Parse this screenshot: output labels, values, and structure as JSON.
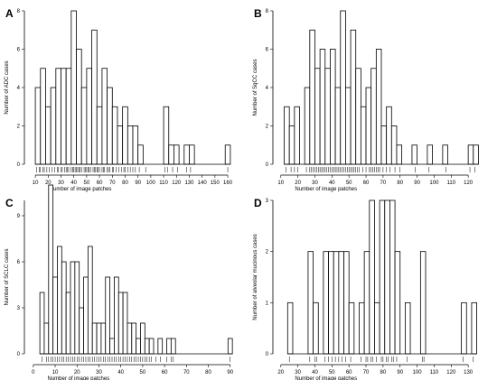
{
  "chart_data": [
    {
      "letter": "A",
      "type": "bar",
      "xlabel": "Number of image patches",
      "ylabel": "Number of ADC cases",
      "xlim": [
        5,
        167
      ],
      "ylim": [
        0,
        8
      ],
      "xticks": [
        10,
        20,
        30,
        40,
        50,
        60,
        70,
        80,
        90,
        100,
        110,
        120,
        130,
        140,
        150,
        160
      ],
      "yticks": [
        0,
        2,
        4,
        6,
        8
      ],
      "bins": [
        {
          "x0": 10,
          "x1": 14,
          "count": 4
        },
        {
          "x0": 14,
          "x1": 18,
          "count": 5
        },
        {
          "x0": 18,
          "x1": 22,
          "count": 3
        },
        {
          "x0": 22,
          "x1": 26,
          "count": 4
        },
        {
          "x0": 26,
          "x1": 30,
          "count": 5
        },
        {
          "x0": 30,
          "x1": 34,
          "count": 5
        },
        {
          "x0": 34,
          "x1": 38,
          "count": 5
        },
        {
          "x0": 38,
          "x1": 42,
          "count": 8
        },
        {
          "x0": 42,
          "x1": 46,
          "count": 6
        },
        {
          "x0": 46,
          "x1": 50,
          "count": 4
        },
        {
          "x0": 50,
          "x1": 54,
          "count": 5
        },
        {
          "x0": 54,
          "x1": 58,
          "count": 7
        },
        {
          "x0": 58,
          "x1": 62,
          "count": 3
        },
        {
          "x0": 62,
          "x1": 66,
          "count": 5
        },
        {
          "x0": 66,
          "x1": 70,
          "count": 4
        },
        {
          "x0": 70,
          "x1": 74,
          "count": 3
        },
        {
          "x0": 74,
          "x1": 78,
          "count": 2
        },
        {
          "x0": 78,
          "x1": 82,
          "count": 3
        },
        {
          "x0": 82,
          "x1": 86,
          "count": 2
        },
        {
          "x0": 86,
          "x1": 90,
          "count": 2
        },
        {
          "x0": 90,
          "x1": 94,
          "count": 1
        },
        {
          "x0": 94,
          "x1": 98,
          "count": 0
        },
        {
          "x0": 98,
          "x1": 102,
          "count": 0
        },
        {
          "x0": 102,
          "x1": 106,
          "count": 0
        },
        {
          "x0": 106,
          "x1": 110,
          "count": 0
        },
        {
          "x0": 110,
          "x1": 114,
          "count": 3
        },
        {
          "x0": 114,
          "x1": 118,
          "count": 1
        },
        {
          "x0": 118,
          "x1": 122,
          "count": 1
        },
        {
          "x0": 122,
          "x1": 126,
          "count": 0
        },
        {
          "x0": 126,
          "x1": 130,
          "count": 1
        },
        {
          "x0": 130,
          "x1": 134,
          "count": 1
        },
        {
          "x0": 134,
          "x1": 138,
          "count": 0
        },
        {
          "x0": 138,
          "x1": 142,
          "count": 0
        },
        {
          "x0": 142,
          "x1": 146,
          "count": 0
        },
        {
          "x0": 146,
          "x1": 150,
          "count": 0
        },
        {
          "x0": 150,
          "x1": 154,
          "count": 0
        },
        {
          "x0": 154,
          "x1": 158,
          "count": 0
        },
        {
          "x0": 158,
          "x1": 162,
          "count": 1
        }
      ],
      "rug": [
        11,
        13,
        14,
        16,
        17,
        19,
        21,
        23,
        25,
        27,
        28,
        30,
        31,
        33,
        34,
        35,
        36,
        38,
        39,
        40,
        41,
        42,
        43,
        44,
        45,
        46,
        48,
        49,
        50,
        51,
        52,
        53,
        55,
        56,
        57,
        58,
        59,
        60,
        62,
        63,
        64,
        66,
        67,
        68,
        70,
        71,
        73,
        75,
        77,
        79,
        80,
        82,
        84,
        86,
        88,
        91,
        96,
        111,
        113,
        117,
        121,
        128,
        131,
        160
      ]
    },
    {
      "letter": "B",
      "type": "bar",
      "xlabel": "Number of image patches",
      "ylabel": "Number of SqCC cases",
      "xlim": [
        8,
        130
      ],
      "ylim": [
        0,
        8
      ],
      "xticks": [
        10,
        20,
        30,
        40,
        50,
        60,
        70,
        80,
        90,
        100,
        110,
        120
      ],
      "yticks": [
        0,
        2,
        4,
        6,
        8
      ],
      "bins": [
        {
          "x0": 12,
          "x1": 15,
          "count": 3
        },
        {
          "x0": 15,
          "x1": 18,
          "count": 2
        },
        {
          "x0": 18,
          "x1": 21,
          "count": 3
        },
        {
          "x0": 21,
          "x1": 24,
          "count": 0
        },
        {
          "x0": 24,
          "x1": 27,
          "count": 4
        },
        {
          "x0": 27,
          "x1": 30,
          "count": 7
        },
        {
          "x0": 30,
          "x1": 33,
          "count": 5
        },
        {
          "x0": 33,
          "x1": 36,
          "count": 6
        },
        {
          "x0": 36,
          "x1": 39,
          "count": 5
        },
        {
          "x0": 39,
          "x1": 42,
          "count": 6
        },
        {
          "x0": 42,
          "x1": 45,
          "count": 4
        },
        {
          "x0": 45,
          "x1": 48,
          "count": 8
        },
        {
          "x0": 48,
          "x1": 51,
          "count": 4
        },
        {
          "x0": 51,
          "x1": 54,
          "count": 7
        },
        {
          "x0": 54,
          "x1": 57,
          "count": 5
        },
        {
          "x0": 57,
          "x1": 60,
          "count": 3
        },
        {
          "x0": 60,
          "x1": 63,
          "count": 4
        },
        {
          "x0": 63,
          "x1": 66,
          "count": 5
        },
        {
          "x0": 66,
          "x1": 69,
          "count": 6
        },
        {
          "x0": 69,
          "x1": 72,
          "count": 2
        },
        {
          "x0": 72,
          "x1": 75,
          "count": 3
        },
        {
          "x0": 75,
          "x1": 78,
          "count": 2
        },
        {
          "x0": 78,
          "x1": 81,
          "count": 1
        },
        {
          "x0": 81,
          "x1": 84,
          "count": 0
        },
        {
          "x0": 84,
          "x1": 87,
          "count": 0
        },
        {
          "x0": 87,
          "x1": 90,
          "count": 1
        },
        {
          "x0": 90,
          "x1": 93,
          "count": 0
        },
        {
          "x0": 93,
          "x1": 96,
          "count": 0
        },
        {
          "x0": 96,
          "x1": 99,
          "count": 1
        },
        {
          "x0": 99,
          "x1": 102,
          "count": 0
        },
        {
          "x0": 102,
          "x1": 105,
          "count": 0
        },
        {
          "x0": 105,
          "x1": 108,
          "count": 1
        },
        {
          "x0": 108,
          "x1": 111,
          "count": 0
        },
        {
          "x0": 111,
          "x1": 114,
          "count": 0
        },
        {
          "x0": 114,
          "x1": 117,
          "count": 0
        },
        {
          "x0": 117,
          "x1": 120,
          "count": 0
        },
        {
          "x0": 120,
          "x1": 123,
          "count": 1
        },
        {
          "x0": 123,
          "x1": 126,
          "count": 1
        }
      ],
      "rug": [
        13,
        16,
        18,
        20,
        25,
        27,
        28,
        29,
        30,
        31,
        32,
        33,
        34,
        35,
        36,
        37,
        38,
        39,
        40,
        41,
        42,
        43,
        44,
        45,
        46,
        47,
        48,
        49,
        50,
        51,
        52,
        53,
        54,
        55,
        56,
        58,
        60,
        62,
        63,
        64,
        65,
        66,
        67,
        68,
        70,
        72,
        74,
        77,
        80,
        89,
        97,
        107,
        121,
        124
      ]
    },
    {
      "letter": "C",
      "type": "bar",
      "xlabel": "Number of image patches",
      "ylabel": "Number of SCLC cases",
      "xlim": [
        -2,
        93
      ],
      "ylim": [
        0,
        10
      ],
      "xticks": [
        0,
        10,
        20,
        30,
        40,
        50,
        60,
        70,
        80,
        90
      ],
      "yticks": [
        0,
        3,
        6,
        9
      ],
      "bins": [
        {
          "x0": 3,
          "x1": 5,
          "count": 4
        },
        {
          "x0": 5,
          "x1": 7,
          "count": 2
        },
        {
          "x0": 7,
          "x1": 9,
          "count": 11
        },
        {
          "x0": 9,
          "x1": 11,
          "count": 5
        },
        {
          "x0": 11,
          "x1": 13,
          "count": 7
        },
        {
          "x0": 13,
          "x1": 15,
          "count": 6
        },
        {
          "x0": 15,
          "x1": 17,
          "count": 4
        },
        {
          "x0": 17,
          "x1": 19,
          "count": 6
        },
        {
          "x0": 19,
          "x1": 21,
          "count": 6
        },
        {
          "x0": 21,
          "x1": 23,
          "count": 3
        },
        {
          "x0": 23,
          "x1": 25,
          "count": 5
        },
        {
          "x0": 25,
          "x1": 27,
          "count": 7
        },
        {
          "x0": 27,
          "x1": 29,
          "count": 2
        },
        {
          "x0": 29,
          "x1": 31,
          "count": 2
        },
        {
          "x0": 31,
          "x1": 33,
          "count": 2
        },
        {
          "x0": 33,
          "x1": 35,
          "count": 5
        },
        {
          "x0": 35,
          "x1": 37,
          "count": 1
        },
        {
          "x0": 37,
          "x1": 39,
          "count": 5
        },
        {
          "x0": 39,
          "x1": 41,
          "count": 4
        },
        {
          "x0": 41,
          "x1": 43,
          "count": 4
        },
        {
          "x0": 43,
          "x1": 45,
          "count": 2
        },
        {
          "x0": 45,
          "x1": 47,
          "count": 2
        },
        {
          "x0": 47,
          "x1": 49,
          "count": 1
        },
        {
          "x0": 49,
          "x1": 51,
          "count": 2
        },
        {
          "x0": 51,
          "x1": 53,
          "count": 1
        },
        {
          "x0": 53,
          "x1": 55,
          "count": 1
        },
        {
          "x0": 55,
          "x1": 57,
          "count": 0
        },
        {
          "x0": 57,
          "x1": 59,
          "count": 1
        },
        {
          "x0": 59,
          "x1": 61,
          "count": 0
        },
        {
          "x0": 61,
          "x1": 63,
          "count": 1
        },
        {
          "x0": 63,
          "x1": 65,
          "count": 1
        },
        {
          "x0": 65,
          "x1": 67,
          "count": 0
        },
        {
          "x0": 67,
          "x1": 69,
          "count": 0
        },
        {
          "x0": 69,
          "x1": 71,
          "count": 0
        },
        {
          "x0": 71,
          "x1": 73,
          "count": 0
        },
        {
          "x0": 73,
          "x1": 75,
          "count": 0
        },
        {
          "x0": 75,
          "x1": 77,
          "count": 0
        },
        {
          "x0": 77,
          "x1": 79,
          "count": 0
        },
        {
          "x0": 79,
          "x1": 81,
          "count": 0
        },
        {
          "x0": 81,
          "x1": 83,
          "count": 0
        },
        {
          "x0": 83,
          "x1": 85,
          "count": 0
        },
        {
          "x0": 85,
          "x1": 87,
          "count": 0
        },
        {
          "x0": 87,
          "x1": 89,
          "count": 0
        },
        {
          "x0": 89,
          "x1": 91,
          "count": 1
        }
      ],
      "rug": [
        4,
        6,
        7,
        8,
        9,
        10,
        11,
        12,
        13,
        14,
        15,
        16,
        17,
        18,
        19,
        20,
        21,
        22,
        23,
        24,
        25,
        26,
        27,
        28,
        29,
        30,
        31,
        32,
        33,
        34,
        35,
        36,
        37,
        38,
        39,
        40,
        41,
        42,
        43,
        44,
        45,
        46,
        47,
        48,
        49,
        50,
        51,
        52,
        53,
        54,
        56,
        58,
        61,
        63,
        64,
        90
      ]
    },
    {
      "letter": "D",
      "type": "bar",
      "xlabel": "Number of image patches",
      "ylabel": "Number of alveolar mucinous cases",
      "xlim": [
        18,
        140
      ],
      "ylim": [
        0,
        3
      ],
      "xticks": [
        20,
        30,
        40,
        50,
        60,
        70,
        80,
        90,
        100,
        110,
        120,
        130
      ],
      "yticks": [
        0,
        1,
        2,
        3
      ],
      "bins": [
        {
          "x0": 24,
          "x1": 27,
          "count": 1
        },
        {
          "x0": 27,
          "x1": 30,
          "count": 0
        },
        {
          "x0": 30,
          "x1": 33,
          "count": 0
        },
        {
          "x0": 33,
          "x1": 36,
          "count": 0
        },
        {
          "x0": 36,
          "x1": 39,
          "count": 2
        },
        {
          "x0": 39,
          "x1": 42,
          "count": 1
        },
        {
          "x0": 42,
          "x1": 45,
          "count": 0
        },
        {
          "x0": 45,
          "x1": 48,
          "count": 2
        },
        {
          "x0": 48,
          "x1": 51,
          "count": 2
        },
        {
          "x0": 51,
          "x1": 54,
          "count": 2
        },
        {
          "x0": 54,
          "x1": 57,
          "count": 2
        },
        {
          "x0": 57,
          "x1": 60,
          "count": 2
        },
        {
          "x0": 60,
          "x1": 63,
          "count": 1
        },
        {
          "x0": 63,
          "x1": 66,
          "count": 0
        },
        {
          "x0": 66,
          "x1": 69,
          "count": 1
        },
        {
          "x0": 69,
          "x1": 72,
          "count": 2
        },
        {
          "x0": 72,
          "x1": 75,
          "count": 3
        },
        {
          "x0": 75,
          "x1": 78,
          "count": 1
        },
        {
          "x0": 78,
          "x1": 81,
          "count": 3
        },
        {
          "x0": 81,
          "x1": 84,
          "count": 3
        },
        {
          "x0": 84,
          "x1": 87,
          "count": 3
        },
        {
          "x0": 87,
          "x1": 90,
          "count": 2
        },
        {
          "x0": 90,
          "x1": 93,
          "count": 0
        },
        {
          "x0": 93,
          "x1": 96,
          "count": 1
        },
        {
          "x0": 96,
          "x1": 99,
          "count": 0
        },
        {
          "x0": 99,
          "x1": 102,
          "count": 0
        },
        {
          "x0": 102,
          "x1": 105,
          "count": 2
        },
        {
          "x0": 105,
          "x1": 108,
          "count": 0
        },
        {
          "x0": 108,
          "x1": 111,
          "count": 0
        },
        {
          "x0": 111,
          "x1": 114,
          "count": 0
        },
        {
          "x0": 114,
          "x1": 117,
          "count": 0
        },
        {
          "x0": 117,
          "x1": 120,
          "count": 0
        },
        {
          "x0": 120,
          "x1": 123,
          "count": 0
        },
        {
          "x0": 123,
          "x1": 126,
          "count": 0
        },
        {
          "x0": 126,
          "x1": 129,
          "count": 1
        },
        {
          "x0": 129,
          "x1": 132,
          "count": 0
        },
        {
          "x0": 132,
          "x1": 135,
          "count": 1
        }
      ],
      "rug": [
        25,
        37,
        40,
        41,
        46,
        48,
        50,
        52,
        54,
        56,
        58,
        61,
        67,
        70,
        71,
        73,
        74,
        76,
        79,
        80,
        82,
        83,
        85,
        86,
        88,
        94,
        103,
        104,
        127,
        133
      ]
    }
  ]
}
